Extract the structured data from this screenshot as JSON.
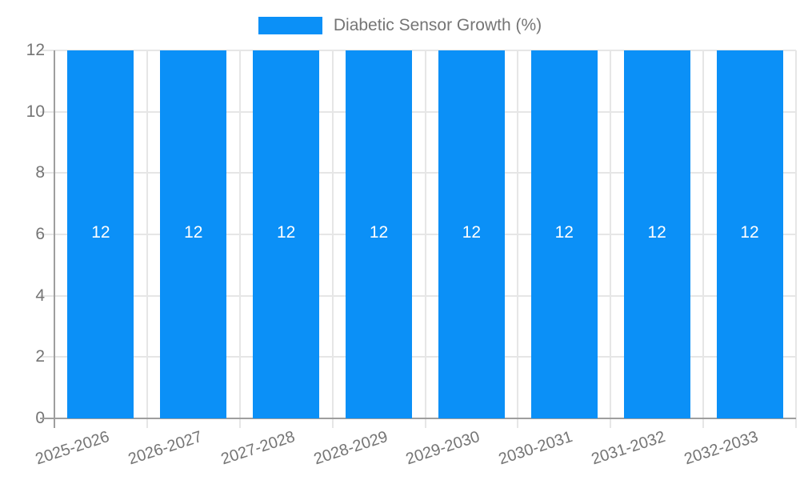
{
  "legend": {
    "label": "Diabetic Sensor Growth (%)"
  },
  "colors": {
    "bar": "#0b90f7",
    "grid": "#e6e6e6",
    "axis_line": "#9e9e9e",
    "axis_text": "#757575",
    "value_label": "#ffffff",
    "background": "#ffffff"
  },
  "chart_data": {
    "type": "bar",
    "title": "Diabetic Sensor Growth (%)",
    "categories": [
      "2025-2026",
      "2026-2027",
      "2027-2028",
      "2028-2029",
      "2029-2030",
      "2030-2031",
      "2031-2032",
      "2032-2033"
    ],
    "values": [
      12,
      12,
      12,
      12,
      12,
      12,
      12,
      12
    ],
    "data_labels": [
      "12",
      "12",
      "12",
      "12",
      "12",
      "12",
      "12",
      "12"
    ],
    "xlabel": "",
    "ylabel": "",
    "ylim": [
      0,
      12
    ],
    "yticks": [
      0,
      2,
      4,
      6,
      8,
      10,
      12
    ],
    "grid": true,
    "legend_position": "top",
    "x_tick_rotation_deg": -18
  }
}
